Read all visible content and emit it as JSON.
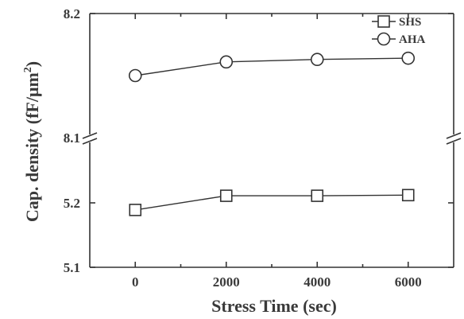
{
  "chart_data": {
    "type": "line",
    "xlabel": "Stress Time (sec)",
    "ylabel": "Cap. density (fF/μm²)",
    "ylabel_main": "Cap. density (fF/μm",
    "ylabel_sup": "2",
    "ylabel_close": ")",
    "xlim": [
      -1000,
      7000
    ],
    "x_ticks": [
      0,
      2000,
      4000,
      6000
    ],
    "x_tick_labels": [
      "0",
      "2000",
      "4000",
      "6000"
    ],
    "broken_y_axis": true,
    "y_segments": [
      {
        "name": "upper",
        "ylim": [
          8.1,
          8.2
        ],
        "ticks": [
          8.1,
          8.2
        ],
        "tick_labels": [
          "8.1",
          "8.2"
        ]
      },
      {
        "name": "lower",
        "ylim": [
          5.1,
          5.2
        ],
        "ticks": [
          5.1,
          5.2
        ],
        "tick_labels": [
          "5.1",
          "5.2"
        ]
      }
    ],
    "grid": false,
    "legend_position": "top-right",
    "series": [
      {
        "name": "SHS",
        "marker": "square",
        "segment": "lower",
        "x": [
          0,
          2000,
          4000,
          6000
        ],
        "y": [
          5.189,
          5.211,
          5.211,
          5.212
        ]
      },
      {
        "name": "AHA",
        "marker": "circle",
        "segment": "upper",
        "x": [
          0,
          2000,
          4000,
          6000
        ],
        "y": [
          8.15,
          8.161,
          8.163,
          8.164
        ]
      }
    ]
  }
}
